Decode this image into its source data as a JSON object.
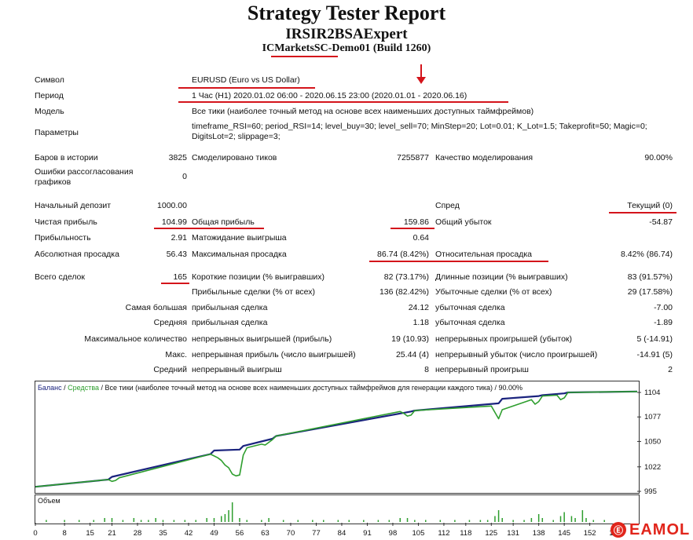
{
  "header": {
    "title": "Strategy Tester Report",
    "expert": "IRSIR2BSAExpert",
    "server": "ICMarketsSC-Demo01 (Build 1260)"
  },
  "info": {
    "symbol_label": "Символ",
    "symbol_value": "EURUSD (Euro vs US Dollar)",
    "period_label": "Период",
    "period_value": "1 Час (H1) 2020.01.02 06:00 - 2020.06.15 23:00 (2020.01.01 - 2020.06.16)",
    "model_label": "Модель",
    "model_value": "Все тики (наиболее точный метод на основе всех наименьших доступных таймфреймов)",
    "params_label": "Параметры",
    "params_value": "timeframe_RSI=60; period_RSI=14; level_buy=30; level_sell=70; MinStep=20; Lot=0.01; K_Lot=1.5; Takeprofit=50; Magic=0; DigitsLot=2; slippage=3;"
  },
  "stats": {
    "bars_label": "Баров в истории",
    "bars_value": "3825",
    "ticks_label": "Смоделировано тиков",
    "ticks_value": "7255877",
    "quality_label": "Качество моделирования",
    "quality_value": "90.00%",
    "mismatch_label": "Ошибки рассогласования графиков",
    "mismatch_value": "0",
    "deposit_label": "Начальный депозит",
    "deposit_value": "1000.00",
    "spread_label": "Спред",
    "spread_value": "Текущий (0)",
    "net_label": "Чистая прибыль",
    "net_value": "104.99",
    "gross_profit_label": "Общая прибыль",
    "gross_profit_value": "159.86",
    "gross_loss_label": "Общий убыток",
    "gross_loss_value": "-54.87",
    "pf_label": "Прибыльность",
    "pf_value": "2.91",
    "expect_label": "Матожидание выигрыша",
    "expect_value": "0.64",
    "abs_dd_label": "Абсолютная просадка",
    "abs_dd_value": "56.43",
    "max_dd_label": "Максимальная просадка",
    "max_dd_value": "86.74 (8.42%)",
    "rel_dd_label": "Относительная просадка",
    "rel_dd_value": "8.42% (86.74)",
    "trades_label": "Всего сделок",
    "trades_value": "165",
    "short_label": "Короткие позиции (% выигравших)",
    "short_value": "82 (73.17%)",
    "long_label": "Длинные позиции (% выигравших)",
    "long_value": "83 (91.57%)",
    "win_label": "Прибыльные сделки (% от всех)",
    "win_value": "136 (82.42%)",
    "loss_label": "Убыточные сделки (% от всех)",
    "loss_value": "29 (17.58%)",
    "largest_label": "Самая большая",
    "largest_win_label": "прибыльная сделка",
    "largest_win_value": "24.12",
    "largest_loss_label": "убыточная сделка",
    "largest_loss_value": "-7.00",
    "average_label": "Средняя",
    "average_win_label": "прибыльная сделка",
    "average_win_value": "1.18",
    "average_loss_label": "убыточная сделка",
    "average_loss_value": "-1.89",
    "max_consec_label": "Максимальное количество",
    "max_consec_win_label": "непрерывных выигрышей (прибыль)",
    "max_consec_win_value": "19 (10.93)",
    "max_consec_loss_label": "непрерывных проигрышей (убыток)",
    "max_consec_loss_value": "5 (-14.91)",
    "max2_label": "Макс.",
    "max_profit_label": "непрерывная прибыль (число выигрышей)",
    "max_profit_value": "25.44 (4)",
    "max_loss_label": "непрерывный убыток (число проигрышей)",
    "max_loss_value": "-14.91 (5)",
    "avg2_label": "Средний",
    "avg_win_label": "непрерывный выигрыш",
    "avg_win_value": "8",
    "avg_loss_label": "непрерывный проигрыш",
    "avg_loss_value": "2"
  },
  "chart": {
    "legend_balance": "Баланс",
    "legend_sep1": " / ",
    "legend_equity": "Средства",
    "legend_rest": " / Все тики (наиболее точный метод на основе всех наименьших доступных таймфреймов для генерации каждого тика) / 90.00%",
    "volume_label": "Объем",
    "colors": {
      "balance": "#1a237e",
      "equity": "#2e9e2e",
      "volume": "#2e9e2e"
    }
  },
  "chart_data": {
    "type": "line",
    "title": "",
    "yticks": [
      995,
      1022,
      1050,
      1077,
      1104
    ],
    "ylim": [
      995,
      1104
    ],
    "xticks": [
      0,
      8,
      15,
      21,
      28,
      35,
      42,
      49,
      56,
      63,
      70,
      77,
      84,
      91,
      98,
      105,
      112,
      118,
      125,
      131,
      138,
      145,
      152,
      159
    ],
    "xlim": [
      0,
      165
    ],
    "series": [
      {
        "name": "Баланс",
        "x": [
          0,
          20,
          21,
          48,
          49,
          56,
          57,
          65,
          66,
          103,
          104,
          127,
          128,
          138,
          139,
          145,
          146,
          165
        ],
        "y": [
          1000,
          1008,
          1011,
          1036,
          1040,
          1041,
          1045,
          1053,
          1056,
          1083,
          1084,
          1092,
          1097,
          1100,
          1101,
          1103,
          1104,
          1105
        ]
      },
      {
        "name": "Средства",
        "x": [
          0,
          20,
          21,
          22,
          23,
          48,
          49,
          50,
          51,
          52,
          53,
          54,
          55,
          56,
          57,
          58,
          62,
          63,
          64,
          65,
          66,
          100,
          101,
          102,
          103,
          104,
          125,
          126,
          127,
          128,
          136,
          137,
          138,
          139,
          143,
          144,
          145,
          146,
          165
        ],
        "y": [
          1000,
          1008,
          1006,
          1007,
          1010,
          1036,
          1034,
          1032,
          1029,
          1024,
          1021,
          1014,
          1012,
          1013,
          1035,
          1043,
          1047,
          1046,
          1049,
          1052,
          1056,
          1083,
          1081,
          1078,
          1079,
          1084,
          1089,
          1082,
          1075,
          1085,
          1096,
          1091,
          1094,
          1100,
          1101,
          1096,
          1098,
          1104,
          1105
        ]
      }
    ],
    "volume": [
      {
        "x": 3,
        "v": 1
      },
      {
        "x": 8,
        "v": 1
      },
      {
        "x": 12,
        "v": 1
      },
      {
        "x": 16,
        "v": 1
      },
      {
        "x": 19,
        "v": 2
      },
      {
        "x": 21,
        "v": 2
      },
      {
        "x": 24,
        "v": 1
      },
      {
        "x": 27,
        "v": 2
      },
      {
        "x": 29,
        "v": 1
      },
      {
        "x": 31,
        "v": 1
      },
      {
        "x": 33,
        "v": 2
      },
      {
        "x": 35,
        "v": 1
      },
      {
        "x": 38,
        "v": 1
      },
      {
        "x": 41,
        "v": 1
      },
      {
        "x": 44,
        "v": 1
      },
      {
        "x": 47,
        "v": 2
      },
      {
        "x": 49,
        "v": 2
      },
      {
        "x": 51,
        "v": 3
      },
      {
        "x": 52,
        "v": 4
      },
      {
        "x": 53,
        "v": 6
      },
      {
        "x": 54,
        "v": 10
      },
      {
        "x": 56,
        "v": 2
      },
      {
        "x": 58,
        "v": 1
      },
      {
        "x": 62,
        "v": 1
      },
      {
        "x": 64,
        "v": 2
      },
      {
        "x": 68,
        "v": 1
      },
      {
        "x": 72,
        "v": 1
      },
      {
        "x": 76,
        "v": 1
      },
      {
        "x": 79,
        "v": 1
      },
      {
        "x": 83,
        "v": 1
      },
      {
        "x": 86,
        "v": 1
      },
      {
        "x": 90,
        "v": 1
      },
      {
        "x": 94,
        "v": 1
      },
      {
        "x": 97,
        "v": 1
      },
      {
        "x": 100,
        "v": 2
      },
      {
        "x": 102,
        "v": 2
      },
      {
        "x": 104,
        "v": 1
      },
      {
        "x": 107,
        "v": 1
      },
      {
        "x": 111,
        "v": 1
      },
      {
        "x": 115,
        "v": 1
      },
      {
        "x": 119,
        "v": 1
      },
      {
        "x": 122,
        "v": 1
      },
      {
        "x": 124,
        "v": 1
      },
      {
        "x": 126,
        "v": 3
      },
      {
        "x": 127,
        "v": 6
      },
      {
        "x": 128,
        "v": 2
      },
      {
        "x": 131,
        "v": 1
      },
      {
        "x": 134,
        "v": 1
      },
      {
        "x": 136,
        "v": 2
      },
      {
        "x": 138,
        "v": 4
      },
      {
        "x": 139,
        "v": 2
      },
      {
        "x": 142,
        "v": 1
      },
      {
        "x": 144,
        "v": 3
      },
      {
        "x": 145,
        "v": 5
      },
      {
        "x": 147,
        "v": 3
      },
      {
        "x": 148,
        "v": 2
      },
      {
        "x": 150,
        "v": 6
      },
      {
        "x": 151,
        "v": 2
      },
      {
        "x": 153,
        "v": 1
      },
      {
        "x": 156,
        "v": 1
      }
    ]
  },
  "watermark": {
    "mark": "Ⓔ",
    "text": "EAMOL"
  }
}
